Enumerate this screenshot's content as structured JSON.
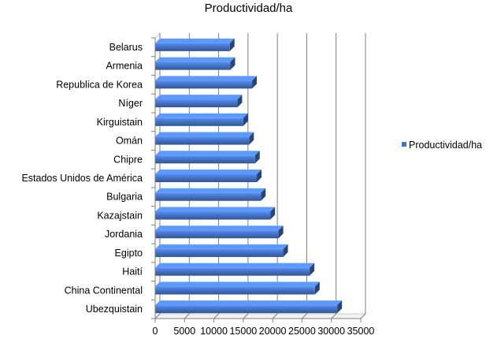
{
  "chart_data": {
    "type": "bar",
    "orientation": "horizontal",
    "title": "Productividad/ha",
    "categories": [
      "Belarus",
      "Armenia",
      "Republica de Korea",
      "Níger",
      "Kirguistain",
      "Omán",
      "Chipre",
      "Estados Unidos de América",
      "Bulgaria",
      "Kazajstain",
      "Jordania",
      "Egipto",
      "Haití",
      "China Continental",
      "Ubezquistain"
    ],
    "series": [
      {
        "name": "Productividad/ha",
        "values": [
          12700,
          12800,
          16500,
          14000,
          15000,
          16000,
          17000,
          17300,
          18000,
          19600,
          21000,
          21800,
          26300,
          27200,
          31000
        ],
        "color": "#4472C4"
      }
    ],
    "xlim": [
      0,
      35000
    ],
    "xticks": [
      0,
      5000,
      10000,
      15000,
      20000,
      25000,
      30000,
      35000
    ],
    "xtick_labels": [
      "0",
      "5000",
      "10000",
      "15000",
      "20000",
      "25000",
      "30000",
      "35000"
    ],
    "xlabel": "",
    "ylabel": "",
    "grid": true,
    "legend_position": "right"
  }
}
